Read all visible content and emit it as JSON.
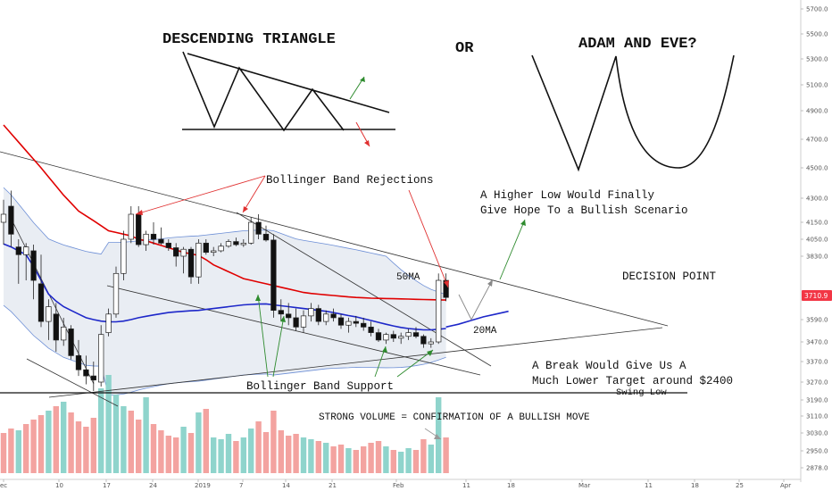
{
  "chart_data": {
    "type": "candlestick",
    "y_axis": {
      "ticks": [
        "5700.0",
        "5500.0",
        "5300.0",
        "5100.0",
        "4900.0",
        "4700.0",
        "4500.0",
        "4300.0",
        "4150.0",
        "4050.0",
        "3830.0",
        "3710.9",
        "3590.0",
        "3470.0",
        "3370.0",
        "3270.0",
        "3190.0",
        "3110.0",
        "3030.0",
        "2950.0",
        "2878.0"
      ],
      "current_price": "3710.9",
      "current_price_color": "#f23645"
    },
    "x_axis": {
      "ticks": [
        "ec",
        "10",
        "17",
        "24",
        "2019",
        "7",
        "14",
        "21",
        "Feb",
        "11",
        "18",
        "Mar",
        "11",
        "18",
        "25",
        "Apr"
      ]
    },
    "candles": [
      {
        "o": 4150,
        "h": 4290,
        "l": 3980,
        "c": 4200
      },
      {
        "o": 4250,
        "h": 4350,
        "l": 3950,
        "c": 4080
      },
      {
        "o": 3950,
        "h": 4050,
        "l": 3750,
        "c": 3850
      },
      {
        "o": 3850,
        "h": 4000,
        "l": 3760,
        "c": 3950
      },
      {
        "o": 3900,
        "h": 3980,
        "l": 3700,
        "c": 3760
      },
      {
        "o": 3750,
        "h": 3850,
        "l": 3550,
        "c": 3580
      },
      {
        "o": 3580,
        "h": 3700,
        "l": 3480,
        "c": 3660
      },
      {
        "o": 3620,
        "h": 3680,
        "l": 3420,
        "c": 3480
      },
      {
        "o": 3480,
        "h": 3600,
        "l": 3450,
        "c": 3550
      },
      {
        "o": 3540,
        "h": 3560,
        "l": 3380,
        "c": 3400
      },
      {
        "o": 3400,
        "h": 3480,
        "l": 3300,
        "c": 3330
      },
      {
        "o": 3330,
        "h": 3400,
        "l": 3260,
        "c": 3300
      },
      {
        "o": 3300,
        "h": 3370,
        "l": 3230,
        "c": 3280
      },
      {
        "o": 3270,
        "h": 3560,
        "l": 3250,
        "c": 3510
      },
      {
        "o": 3520,
        "h": 3650,
        "l": 3500,
        "c": 3620
      },
      {
        "o": 3620,
        "h": 3800,
        "l": 3600,
        "c": 3780
      },
      {
        "o": 3780,
        "h": 4100,
        "l": 3760,
        "c": 4050
      },
      {
        "o": 4050,
        "h": 4250,
        "l": 4000,
        "c": 4200
      },
      {
        "o": 4200,
        "h": 4250,
        "l": 3950,
        "c": 3980
      },
      {
        "o": 3980,
        "h": 4100,
        "l": 3900,
        "c": 4080
      },
      {
        "o": 4080,
        "h": 4150,
        "l": 3980,
        "c": 4050
      },
      {
        "o": 4050,
        "h": 4120,
        "l": 3980,
        "c": 4000
      },
      {
        "o": 4000,
        "h": 4050,
        "l": 3900,
        "c": 3940
      },
      {
        "o": 3940,
        "h": 4000,
        "l": 3800,
        "c": 3830
      },
      {
        "o": 3830,
        "h": 3950,
        "l": 3780,
        "c": 3920
      },
      {
        "o": 3920,
        "h": 3950,
        "l": 3750,
        "c": 3770
      },
      {
        "o": 3770,
        "h": 4050,
        "l": 3750,
        "c": 4000
      },
      {
        "o": 4000,
        "h": 4050,
        "l": 3850,
        "c": 3880
      },
      {
        "o": 3880,
        "h": 3950,
        "l": 3830,
        "c": 3900
      },
      {
        "o": 3900,
        "h": 4000,
        "l": 3880,
        "c": 3960
      },
      {
        "o": 3960,
        "h": 4050,
        "l": 3940,
        "c": 4020
      },
      {
        "o": 4020,
        "h": 4060,
        "l": 3960,
        "c": 3980
      },
      {
        "o": 3980,
        "h": 4050,
        "l": 3950,
        "c": 4000
      },
      {
        "o": 4000,
        "h": 4180,
        "l": 3980,
        "c": 4150
      },
      {
        "o": 4150,
        "h": 4200,
        "l": 4050,
        "c": 4080
      },
      {
        "o": 4080,
        "h": 4130,
        "l": 4020,
        "c": 4040
      },
      {
        "o": 4040,
        "h": 4080,
        "l": 3600,
        "c": 3640
      },
      {
        "o": 3640,
        "h": 3700,
        "l": 3580,
        "c": 3620
      },
      {
        "o": 3620,
        "h": 3680,
        "l": 3560,
        "c": 3600
      },
      {
        "o": 3600,
        "h": 3650,
        "l": 3530,
        "c": 3550
      },
      {
        "o": 3550,
        "h": 3640,
        "l": 3520,
        "c": 3610
      },
      {
        "o": 3610,
        "h": 3680,
        "l": 3580,
        "c": 3650
      },
      {
        "o": 3650,
        "h": 3670,
        "l": 3560,
        "c": 3580
      },
      {
        "o": 3580,
        "h": 3640,
        "l": 3560,
        "c": 3620
      },
      {
        "o": 3620,
        "h": 3650,
        "l": 3580,
        "c": 3600
      },
      {
        "o": 3600,
        "h": 3620,
        "l": 3540,
        "c": 3560
      },
      {
        "o": 3560,
        "h": 3600,
        "l": 3520,
        "c": 3580
      },
      {
        "o": 3580,
        "h": 3610,
        "l": 3550,
        "c": 3570
      },
      {
        "o": 3570,
        "h": 3600,
        "l": 3530,
        "c": 3550
      },
      {
        "o": 3550,
        "h": 3580,
        "l": 3500,
        "c": 3520
      },
      {
        "o": 3520,
        "h": 3540,
        "l": 3470,
        "c": 3480
      },
      {
        "o": 3480,
        "h": 3520,
        "l": 3460,
        "c": 3510
      },
      {
        "o": 3510,
        "h": 3530,
        "l": 3470,
        "c": 3490
      },
      {
        "o": 3490,
        "h": 3520,
        "l": 3460,
        "c": 3500
      },
      {
        "o": 3500,
        "h": 3540,
        "l": 3480,
        "c": 3520
      },
      {
        "o": 3520,
        "h": 3550,
        "l": 3490,
        "c": 3500
      },
      {
        "o": 3500,
        "h": 3510,
        "l": 3440,
        "c": 3460
      },
      {
        "o": 3460,
        "h": 3490,
        "l": 3440,
        "c": 3470
      },
      {
        "o": 3470,
        "h": 3780,
        "l": 3460,
        "c": 3760
      },
      {
        "o": 3760,
        "h": 3780,
        "l": 3690,
        "c": 3710
      }
    ],
    "volumes": [
      {
        "v": 45,
        "up": false
      },
      {
        "v": 50,
        "up": false
      },
      {
        "v": 48,
        "up": true
      },
      {
        "v": 55,
        "up": false
      },
      {
        "v": 60,
        "up": false
      },
      {
        "v": 65,
        "up": false
      },
      {
        "v": 70,
        "up": true
      },
      {
        "v": 75,
        "up": false
      },
      {
        "v": 80,
        "up": true
      },
      {
        "v": 68,
        "up": false
      },
      {
        "v": 58,
        "up": false
      },
      {
        "v": 52,
        "up": false
      },
      {
        "v": 62,
        "up": false
      },
      {
        "v": 95,
        "up": true
      },
      {
        "v": 110,
        "up": true
      },
      {
        "v": 88,
        "up": true
      },
      {
        "v": 75,
        "up": true
      },
      {
        "v": 70,
        "up": false
      },
      {
        "v": 60,
        "up": false
      },
      {
        "v": 85,
        "up": true
      },
      {
        "v": 55,
        "up": false
      },
      {
        "v": 48,
        "up": false
      },
      {
        "v": 42,
        "up": false
      },
      {
        "v": 40,
        "up": false
      },
      {
        "v": 52,
        "up": true
      },
      {
        "v": 45,
        "up": false
      },
      {
        "v": 68,
        "up": true
      },
      {
        "v": 72,
        "up": false
      },
      {
        "v": 40,
        "up": true
      },
      {
        "v": 38,
        "up": true
      },
      {
        "v": 44,
        "up": true
      },
      {
        "v": 36,
        "up": false
      },
      {
        "v": 40,
        "up": true
      },
      {
        "v": 50,
        "up": true
      },
      {
        "v": 58,
        "up": false
      },
      {
        "v": 46,
        "up": false
      },
      {
        "v": 70,
        "up": false
      },
      {
        "v": 48,
        "up": false
      },
      {
        "v": 42,
        "up": false
      },
      {
        "v": 44,
        "up": false
      },
      {
        "v": 40,
        "up": true
      },
      {
        "v": 38,
        "up": true
      },
      {
        "v": 36,
        "up": false
      },
      {
        "v": 34,
        "up": true
      },
      {
        "v": 30,
        "up": false
      },
      {
        "v": 32,
        "up": false
      },
      {
        "v": 28,
        "up": true
      },
      {
        "v": 26,
        "up": false
      },
      {
        "v": 30,
        "up": false
      },
      {
        "v": 34,
        "up": false
      },
      {
        "v": 36,
        "up": false
      },
      {
        "v": 30,
        "up": true
      },
      {
        "v": 26,
        "up": false
      },
      {
        "v": 24,
        "up": true
      },
      {
        "v": 28,
        "up": true
      },
      {
        "v": 26,
        "up": false
      },
      {
        "v": 38,
        "up": false
      },
      {
        "v": 32,
        "up": true
      },
      {
        "v": 85,
        "up": true
      },
      {
        "v": 40,
        "up": false
      }
    ],
    "ma50": [
      4800,
      4740,
      4680,
      4620,
      4560,
      4500,
      4440,
      4380,
      4320,
      4270,
      4220,
      4190,
      4160,
      4130,
      4100,
      4090,
      4080,
      4070,
      4050,
      4030,
      4000,
      3970,
      3940,
      3910,
      3880,
      3860,
      3840,
      3820,
      3805,
      3795,
      3785,
      3775,
      3765,
      3760,
      3755,
      3750,
      3745,
      3740,
      3735,
      3730,
      3725,
      3722,
      3720,
      3718,
      3716,
      3714,
      3712,
      3710,
      3708,
      3706,
      3705,
      3704,
      3703,
      3702,
      3701,
      3700,
      3699,
      3698,
      3697,
      3696
    ],
    "ma20": [
      3990,
      3950,
      3900,
      3850,
      3800,
      3760,
      3720,
      3690,
      3660,
      3640,
      3620,
      3600,
      3590,
      3582,
      3578,
      3578,
      3582,
      3590,
      3600,
      3608,
      3615,
      3622,
      3628,
      3632,
      3635,
      3638,
      3640,
      3645,
      3650,
      3655,
      3660,
      3665,
      3670,
      3672,
      3674,
      3675,
      3670,
      3665,
      3660,
      3655,
      3650,
      3645,
      3640,
      3635,
      3628,
      3620,
      3612,
      3605,
      3595,
      3585,
      3575,
      3565,
      3556,
      3548,
      3542,
      3538,
      3535,
      3535,
      3538,
      3542
    ],
    "ma20_projection": [
      3550,
      3565,
      3585,
      3605,
      3620,
      3635
    ],
    "annotations": {
      "pattern1_title": "DESCENDING TRIANGLE",
      "or_label": "OR",
      "pattern2_title": "ADAM AND EVE?",
      "rejections": "Bollinger Band Rejections",
      "higher_low_1": "A Higher Low Would Finally",
      "higher_low_2": "Give Hope To a Bullish Scenario",
      "ma50_label": "50MA",
      "ma20_label": "20MA",
      "decision": "DECISION POINT",
      "break_1": "A Break Would Give Us A",
      "break_2": "Much Lower Target around $2400",
      "swing_low": "Swing Low",
      "support": "Bollinger Band Support",
      "volume_note": "STRONG VOLUME = CONFIRMATION OF A BULLISH MOVE"
    },
    "colors": {
      "up": "#26a69a",
      "down": "#ef5350",
      "ma50": "#e00000",
      "ma20": "#1d27c9",
      "bb": "#6d8fd6",
      "bb_fill": "#e9edf3",
      "vol_up": "#8fd4cc",
      "vol_down": "#f3a3a0",
      "arrow_green": "#2e8b2e",
      "arrow_red": "#e03030"
    }
  }
}
